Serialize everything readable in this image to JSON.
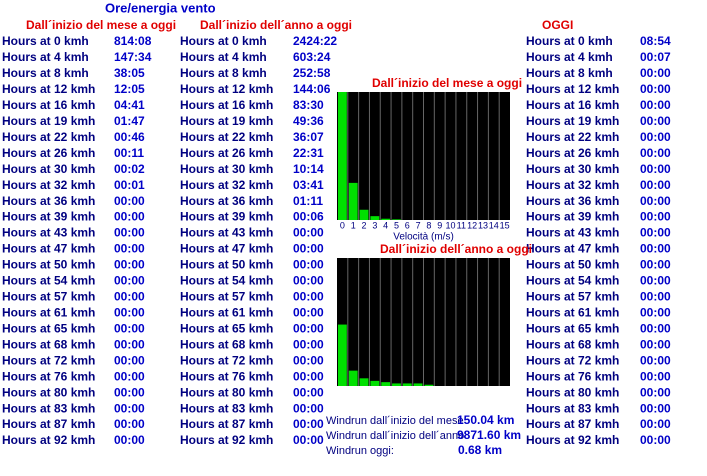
{
  "title": "Ore/energia vento",
  "row_labels": [
    "Hours at 0 kmh",
    "Hours at 4 kmh",
    "Hours at 8 kmh",
    "Hours at 12 kmh",
    "Hours at 16 kmh",
    "Hours at 19 kmh",
    "Hours at 22 kmh",
    "Hours at 26 kmh",
    "Hours at 30 kmh",
    "Hours at 32 kmh",
    "Hours at 36 kmh",
    "Hours at 39 kmh",
    "Hours at 43 kmh",
    "Hours at 47 kmh",
    "Hours at 50 kmh",
    "Hours at 54 kmh",
    "Hours at 57 kmh",
    "Hours at 61 kmh",
    "Hours at 65 kmh",
    "Hours at 68 kmh",
    "Hours at 72 kmh",
    "Hours at 76 kmh",
    "Hours at 80 kmh",
    "Hours at 83 kmh",
    "Hours at 87 kmh",
    "Hours at 92 kmh"
  ],
  "columns": [
    {
      "header": "Dall´inizio del mese a oggi",
      "values": [
        "814:08",
        "147:34",
        "38:05",
        "12:05",
        "04:41",
        "01:47",
        "00:46",
        "00:11",
        "00:02",
        "00:01",
        "00:00",
        "00:00",
        "00:00",
        "00:00",
        "00:00",
        "00:00",
        "00:00",
        "00:00",
        "00:00",
        "00:00",
        "00:00",
        "00:00",
        "00:00",
        "00:00",
        "00:00",
        "00:00"
      ]
    },
    {
      "header": "Dall´inizio dell´anno a oggi",
      "values": [
        "2424:22",
        "603:24",
        "252:58",
        "144:06",
        "83:30",
        "49:36",
        "36:07",
        "22:31",
        "10:14",
        "03:41",
        "01:11",
        "00:06",
        "00:00",
        "00:00",
        "00:00",
        "00:00",
        "00:00",
        "00:00",
        "00:00",
        "00:00",
        "00:00",
        "00:00",
        "00:00",
        "00:00",
        "00:00",
        "00:00"
      ]
    },
    {
      "header": "OGGI",
      "values": [
        "08:54",
        "00:07",
        "00:00",
        "00:00",
        "00:00",
        "00:00",
        "00:00",
        "00:00",
        "00:00",
        "00:00",
        "00:00",
        "00:00",
        "00:00",
        "00:00",
        "00:00",
        "00:00",
        "00:00",
        "00:00",
        "00:00",
        "00:00",
        "00:00",
        "00:00",
        "00:00",
        "00:00",
        "00:00",
        "00:00"
      ]
    }
  ],
  "charts": [
    {
      "type": "bar",
      "title": "Dall´inizio del mese a oggi",
      "x_label": "Velocità (m/s)",
      "categories": [
        0,
        1,
        2,
        3,
        4,
        5,
        6,
        7,
        8,
        9,
        10,
        11,
        12,
        13,
        14,
        15
      ],
      "values": [
        100,
        29,
        8,
        3,
        1,
        0.5,
        0,
        0,
        0,
        0,
        0,
        0,
        0,
        0,
        0,
        0
      ],
      "ylim": [
        0,
        100
      ],
      "color": "#00e000"
    },
    {
      "type": "bar",
      "title": "Dall´inizio dell´anno a oggi",
      "values": [
        48,
        12,
        6,
        4,
        3,
        2,
        2,
        2,
        1,
        0,
        0,
        0,
        0,
        0,
        0,
        0
      ],
      "ylim": [
        0,
        100
      ],
      "color": "#00e000"
    }
  ],
  "windrun": [
    {
      "label": "Windrun dall´inizio del mese",
      "value": "150.04 km"
    },
    {
      "label": "Windrun dall´inizio dell´anno",
      "value": "9871.60 km"
    },
    {
      "label": "Windrun oggi:",
      "value": "0.68 km"
    }
  ]
}
